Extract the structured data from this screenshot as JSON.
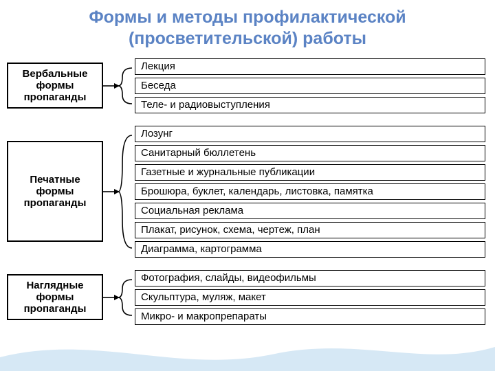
{
  "title": {
    "line1": "Формы и методы профилактической",
    "line2": "(просветительской)  работы",
    "color": "#5b83c4",
    "fontsize": 25,
    "fontweight": "bold"
  },
  "diagram": {
    "category_fontsize": 15,
    "category_fontweight": "bold",
    "item_fontsize": 15,
    "border_color": "#000000",
    "groups": [
      {
        "label_lines": [
          "Вербальные",
          "формы",
          "пропаганды"
        ],
        "cat_width": 140,
        "items": [
          "Лекция",
          "Беседа",
          "Теле- и радиовыступления"
        ],
        "items_width": 510,
        "connector_h": 78,
        "connector_spread": 26
      },
      {
        "label_lines": [
          "Печатные",
          "формы",
          "пропаганды"
        ],
        "cat_width": 140,
        "cat_pad_v": 46,
        "items": [
          "Лозунг",
          "Санитарный бюллетень",
          "Газетные и журнальные публикации",
          "Брошюра, буклет, календарь, листовка, памятка",
          "Социальная реклама",
          "Плакат, рисунок, схема, чертеж, план",
          "Диаграмма, картограмма"
        ],
        "items_width": 510,
        "connector_h": 188,
        "connector_spread": 82
      },
      {
        "label_lines": [
          "Наглядные",
          "формы",
          "пропаганды"
        ],
        "cat_width": 140,
        "items": [
          "Фотография, слайды, видеофильмы",
          "Скульптура, муляж, макет",
          "Микро- и макропрепараты"
        ],
        "items_width": 510,
        "connector_h": 78,
        "connector_spread": 26
      }
    ]
  },
  "wave": {
    "color": "#cfe4f3",
    "opacity": 0.85
  }
}
